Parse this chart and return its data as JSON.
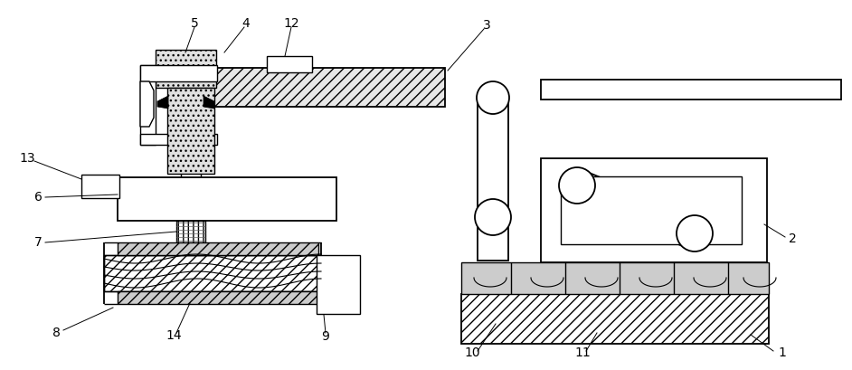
{
  "bg_color": "#ffffff",
  "line_color": "#000000",
  "label_color": "#333333",
  "figsize": [
    9.42,
    4.09
  ],
  "dpi": 100
}
